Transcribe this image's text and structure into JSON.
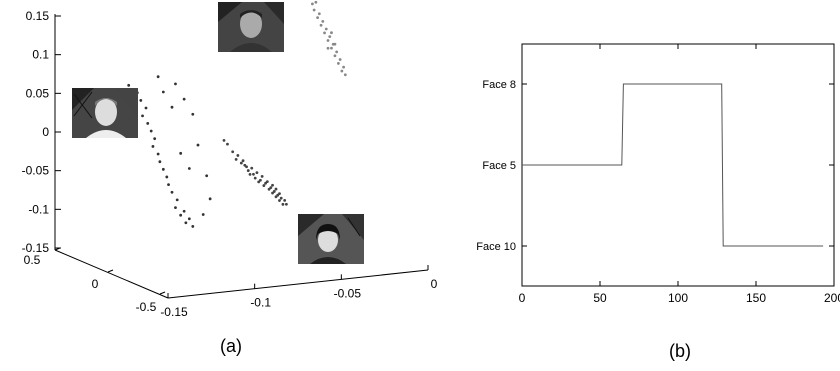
{
  "chart_data": [
    {
      "id": "a",
      "type": "scatter",
      "projection": "3d",
      "panel_label": "(a)",
      "title": "",
      "xlabel": "",
      "ylabel": "",
      "zlabel": "",
      "x_ticks": [
        "0.5",
        "0",
        "-0.5"
      ],
      "y_ticks": [
        "-0.15",
        "-0.1",
        "-0.05",
        "0"
      ],
      "z_ticks": [
        "0.15",
        "0.1",
        "0.05",
        "0",
        "-0.05",
        "-0.1",
        "-0.15"
      ],
      "zlim": [
        -0.15,
        0.15
      ],
      "grid": false,
      "series": [
        {
          "name": "",
          "thumbnail": "male-face-photo",
          "marker_color": "#333333",
          "points": [
            [
              -0.145,
              0.06
            ],
            [
              -0.143,
              0.045
            ],
            [
              -0.14,
              0.05
            ],
            [
              -0.135,
              0.03
            ],
            [
              -0.137,
              0.02
            ],
            [
              -0.132,
              0.0
            ],
            [
              -0.13,
              -0.01
            ],
            [
              -0.128,
              -0.03
            ],
            [
              -0.125,
              -0.05
            ],
            [
              -0.123,
              -0.06
            ],
            [
              -0.12,
              -0.08
            ],
            [
              -0.118,
              -0.1
            ],
            [
              -0.115,
              -0.11
            ],
            [
              -0.112,
              -0.12
            ],
            [
              -0.138,
              0.04
            ],
            [
              -0.134,
              0.01
            ],
            [
              -0.131,
              -0.02
            ],
            [
              -0.127,
              -0.04
            ],
            [
              -0.122,
              -0.07
            ],
            [
              -0.117,
              -0.09
            ],
            [
              -0.113,
              -0.105
            ],
            [
              -0.11,
              -0.115
            ],
            [
              -0.108,
              -0.125
            ],
            [
              -0.11,
              -0.05
            ],
            [
              -0.115,
              -0.03
            ],
            [
              -0.12,
              0.03
            ],
            [
              -0.125,
              0.05
            ],
            [
              -0.128,
              0.07
            ],
            [
              -0.118,
              0.06
            ],
            [
              -0.113,
              0.04
            ],
            [
              -0.108,
              0.02
            ],
            [
              -0.105,
              -0.02
            ],
            [
              -0.1,
              -0.06
            ],
            [
              -0.098,
              -0.09
            ],
            [
              -0.102,
              -0.11
            ]
          ]
        },
        {
          "name": "",
          "thumbnail": "older-male-face-photo",
          "marker_color": "#888888",
          "points": [
            [
              -0.045,
              0.18
            ],
            [
              -0.043,
              0.17
            ],
            [
              -0.04,
              0.165
            ],
            [
              -0.038,
              0.15
            ],
            [
              -0.036,
              0.14
            ],
            [
              -0.034,
              0.13
            ],
            [
              -0.032,
              0.12
            ],
            [
              -0.03,
              0.11
            ],
            [
              -0.028,
              0.1
            ],
            [
              -0.026,
              0.09
            ],
            [
              -0.024,
              0.08
            ],
            [
              -0.022,
              0.07
            ],
            [
              -0.044,
              0.175
            ],
            [
              -0.039,
              0.158
            ],
            [
              -0.035,
              0.145
            ],
            [
              -0.031,
              0.125
            ],
            [
              -0.027,
              0.105
            ],
            [
              -0.023,
              0.085
            ],
            [
              -0.021,
              0.075
            ],
            [
              -0.02,
              0.065
            ],
            [
              -0.037,
              0.16
            ],
            [
              -0.033,
              0.135
            ],
            [
              -0.029,
              0.115
            ],
            [
              -0.025,
              0.095
            ],
            [
              -0.042,
              0.168
            ],
            [
              -0.03,
              0.1
            ],
            [
              -0.028,
              0.12
            ],
            [
              -0.026,
              0.105
            ]
          ]
        },
        {
          "name": "",
          "thumbnail": "female-face-photo",
          "marker_color": "#444444",
          "points": [
            [
              -0.085,
              -0.03
            ],
            [
              -0.083,
              -0.04
            ],
            [
              -0.08,
              -0.045
            ],
            [
              -0.077,
              -0.05
            ],
            [
              -0.075,
              -0.06
            ],
            [
              -0.072,
              -0.065
            ],
            [
              -0.07,
              -0.07
            ],
            [
              -0.067,
              -0.075
            ],
            [
              -0.064,
              -0.08
            ],
            [
              -0.062,
              -0.085
            ],
            [
              -0.06,
              -0.09
            ],
            [
              -0.058,
              -0.095
            ],
            [
              -0.056,
              -0.1
            ],
            [
              -0.082,
              -0.035
            ],
            [
              -0.079,
              -0.042
            ],
            [
              -0.076,
              -0.055
            ],
            [
              -0.073,
              -0.06
            ],
            [
              -0.069,
              -0.068
            ],
            [
              -0.066,
              -0.072
            ],
            [
              -0.063,
              -0.078
            ],
            [
              -0.061,
              -0.083
            ],
            [
              -0.059,
              -0.088
            ],
            [
              -0.057,
              -0.092
            ],
            [
              -0.074,
              -0.052
            ],
            [
              -0.071,
              -0.058
            ],
            [
              -0.068,
              -0.063
            ],
            [
              -0.065,
              -0.07
            ],
            [
              -0.062,
              -0.075
            ],
            [
              -0.078,
              -0.048
            ],
            [
              -0.06,
              -0.08
            ],
            [
              -0.058,
              -0.086
            ],
            [
              -0.055,
              -0.095
            ],
            [
              -0.054,
              -0.1
            ],
            [
              -0.088,
              -0.02
            ],
            [
              -0.09,
              -0.015
            ]
          ]
        }
      ]
    },
    {
      "id": "b",
      "type": "line",
      "step": true,
      "panel_label": "(b)",
      "title": "",
      "xlabel": "",
      "ylabel": "",
      "xlim": [
        0,
        200
      ],
      "x_ticks": [
        0,
        50,
        100,
        150,
        200
      ],
      "y_categories": [
        "Face 10",
        "Face 5",
        "Face 8"
      ],
      "grid": false,
      "series": [
        {
          "name": "",
          "color": "#555555",
          "x": [
            0,
            64,
            65,
            128,
            129,
            193
          ],
          "y": [
            "Face 5",
            "Face 5",
            "Face 8",
            "Face 8",
            "Face 10",
            "Face 10"
          ]
        }
      ]
    }
  ]
}
